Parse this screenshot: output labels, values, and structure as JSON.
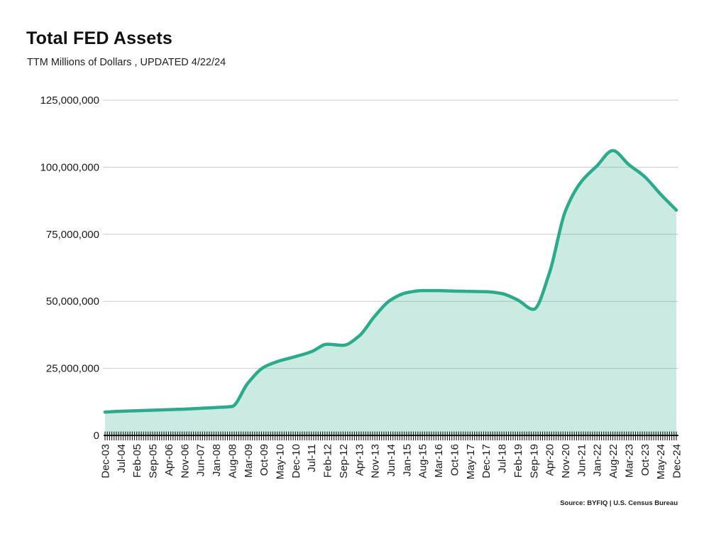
{
  "header": {
    "title": "Total FED Assets",
    "subtitle": "TTM Millions of Dollars , UPDATED 4/22/24"
  },
  "footer": {
    "source": "Source: BYFIQ | U.S. Census Bureau"
  },
  "colors": {
    "line": "#2aab8c",
    "fill_rgba": "rgba(42,171,140,0.25)",
    "grid": "#cccccc",
    "axis": "#000000",
    "tick_label": "#1a1a1a",
    "y_label": "#1a1a1a"
  },
  "chart_data": {
    "type": "area",
    "title": "Total FED Assets",
    "subtitle": "TTM Millions of Dollars , UPDATED 4/22/24",
    "source": "Source: BYFIQ | U.S. Census Bureau",
    "legend": "none",
    "grid": "horizontal",
    "x_minor_ticks": "monthly",
    "months_per_labeled_tick": 7,
    "categories": [
      "Dec-03",
      "Jul-04",
      "Feb-05",
      "Sep-05",
      "Apr-06",
      "Nov-06",
      "Jun-07",
      "Jan-08",
      "Aug-08",
      "Mar-09",
      "Oct-09",
      "May-10",
      "Dec-10",
      "Jul-11",
      "Feb-12",
      "Sep-12",
      "Apr-13",
      "Nov-13",
      "Jun-14",
      "Jan-15",
      "Aug-15",
      "Mar-16",
      "Oct-16",
      "May-17",
      "Dec-17",
      "Jul-18",
      "Feb-19",
      "Sep-19",
      "Apr-20",
      "Nov-20",
      "Jun-21",
      "Jan-22",
      "Aug-22",
      "Mar-23",
      "Oct-23",
      "May-24",
      "Dec-24"
    ],
    "series": [
      {
        "name": "Total FED Assets",
        "values": [
          8700000,
          9000000,
          9200000,
          9400000,
          9600000,
          9800000,
          10100000,
          10400000,
          10800000,
          19500000,
          25400000,
          27800000,
          29400000,
          31200000,
          34000000,
          33600000,
          37000000,
          44500000,
          50500000,
          53200000,
          54000000,
          54000000,
          53800000,
          53700000,
          53600000,
          52900000,
          50500000,
          47000000,
          60500000,
          83500000,
          94500000,
          100500000,
          106200000,
          101000000,
          96500000,
          90000000,
          84000000
        ]
      }
    ],
    "ylim": [
      0,
      125000000
    ],
    "yticks": [
      {
        "value": 0,
        "label": "0"
      },
      {
        "value": 25000000,
        "label": "25,000,000"
      },
      {
        "value": 50000000,
        "label": "50,000,000"
      },
      {
        "value": 75000000,
        "label": "75,000,000"
      },
      {
        "value": 100000000,
        "label": "100,000,000"
      },
      {
        "value": 125000000,
        "label": "125,000,000"
      }
    ]
  }
}
